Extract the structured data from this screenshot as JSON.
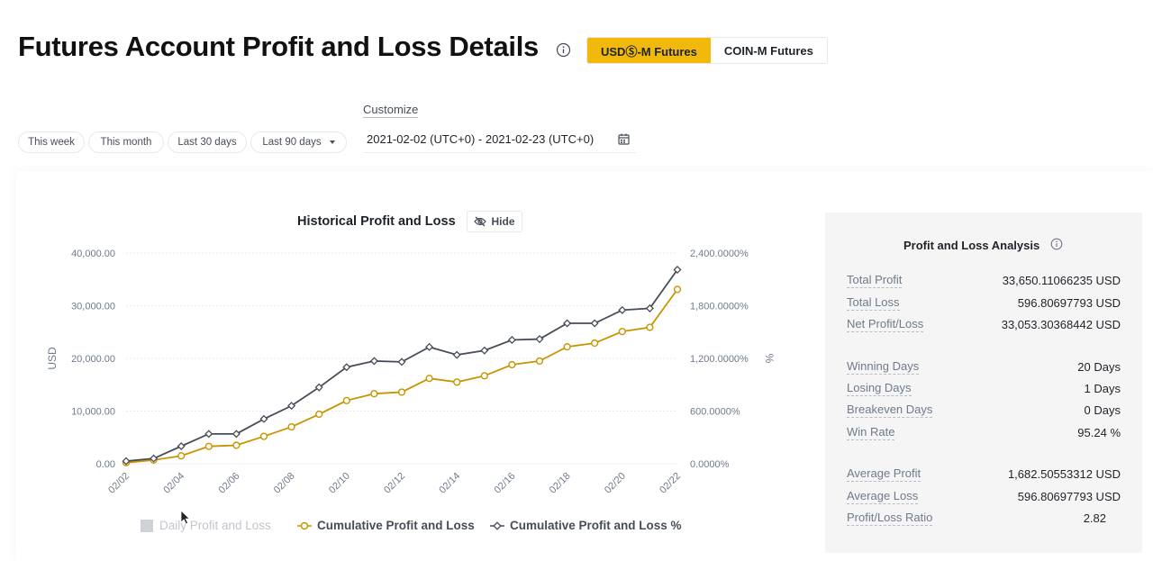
{
  "page": {
    "title": "Futures Account Profit and Loss Details"
  },
  "tabs": {
    "usdm": "USDⓈ-M Futures",
    "coinm": "COIN-M Futures"
  },
  "filters": {
    "this_week": "This week",
    "this_month": "This month",
    "last_30": "Last 30 days",
    "last_90": "Last 90 days",
    "customize": "Customize",
    "date_range": "2021-02-02 (UTC+0) - 2021-02-23 (UTC+0)"
  },
  "chart": {
    "title": "Historical Profit and Loss",
    "hide_label": "Hide"
  },
  "chart_data": {
    "type": "line",
    "x": [
      "02/02",
      "02/03",
      "02/04",
      "02/05",
      "02/06",
      "02/07",
      "02/08",
      "02/09",
      "02/10",
      "02/11",
      "02/12",
      "02/13",
      "02/14",
      "02/15",
      "02/16",
      "02/17",
      "02/18",
      "02/19",
      "02/20",
      "02/21",
      "02/22"
    ],
    "xticks": [
      "02/02",
      "02/04",
      "02/06",
      "02/08",
      "02/10",
      "02/12",
      "02/14",
      "02/16",
      "02/18",
      "02/20",
      "02/22"
    ],
    "ylabel": "USD",
    "y2label": "%",
    "ylim": [
      0,
      40000
    ],
    "y2lim": [
      0,
      2400
    ],
    "yticks": [
      "0.00",
      "10,000.00",
      "20,000.00",
      "30,000.00",
      "40,000.00"
    ],
    "y2ticks": [
      "0.0000%",
      "600.0000%",
      "1,200.0000%",
      "1,800.0000%",
      "2,400.0000%"
    ],
    "series": [
      {
        "name": "Cumulative Profit and Loss",
        "axis": "left",
        "color": "#c99400",
        "values": [
          200,
          700,
          1500,
          3300,
          3500,
          5200,
          7000,
          9400,
          12000,
          13300,
          13600,
          16200,
          15500,
          16700,
          18800,
          19500,
          22200,
          22900,
          25100,
          25900,
          33100
        ]
      },
      {
        "name": "Cumulative Profit and Loss %",
        "axis": "right",
        "color": "#474d57",
        "values": [
          30,
          60,
          200,
          340,
          340,
          510,
          660,
          870,
          1100,
          1170,
          1160,
          1330,
          1240,
          1290,
          1410,
          1420,
          1600,
          1600,
          1750,
          1770,
          2210
        ]
      }
    ],
    "legend": [
      "Daily Profit and Loss",
      "Cumulative Profit and Loss",
      "Cumulative Profit and Loss %"
    ]
  },
  "analysis": {
    "title": "Profit and Loss Analysis",
    "rows": [
      {
        "label": "Total Profit",
        "value": "33,650.11066235 USD"
      },
      {
        "label": "Total Loss",
        "value": "596.80697793 USD"
      },
      {
        "label": "Net Profit/Loss",
        "value": "33,053.30368442 USD"
      },
      {
        "label": "Winning Days",
        "value": "20 Days"
      },
      {
        "label": "Losing Days",
        "value": "1 Days"
      },
      {
        "label": "Breakeven Days",
        "value": "0 Days"
      },
      {
        "label": "Win Rate",
        "value": "95.24 %"
      },
      {
        "label": "Average Profit",
        "value": "1,682.50553312 USD"
      },
      {
        "label": "Average Loss",
        "value": "596.80697793 USD"
      },
      {
        "label": "Profit/Loss Ratio",
        "value": "2.82"
      }
    ]
  },
  "colors": {
    "accent": "#f0b90b",
    "gold_line": "#c99400",
    "dark_line": "#474d57"
  },
  "icons": [
    "info-icon",
    "calendar-icon",
    "eye-off-icon",
    "cursor-icon"
  ]
}
